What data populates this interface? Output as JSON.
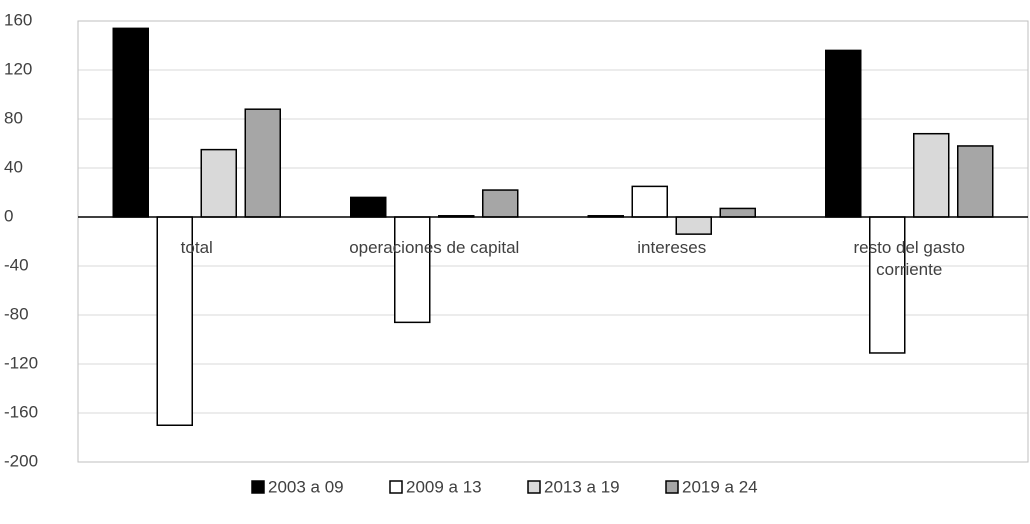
{
  "chart_data": {
    "type": "bar",
    "categories": [
      "total",
      "operaciones de capital",
      "intereses",
      "resto del gasto corriente"
    ],
    "series": [
      {
        "name": "2003 a 09",
        "color": "#000000",
        "values": [
          154,
          16,
          1,
          136
        ]
      },
      {
        "name": "2009 a 13",
        "color": "#ffffff",
        "values": [
          -170,
          -86,
          25,
          -111
        ]
      },
      {
        "name": "2013 a 19",
        "color": "#d9d9d9",
        "values": [
          55,
          1,
          -14,
          68
        ]
      },
      {
        "name": "2019 a 24",
        "color": "#a6a6a6",
        "values": [
          88,
          22,
          7,
          58
        ]
      }
    ],
    "ylim": [
      -200,
      160
    ],
    "yticks": [
      -200,
      -160,
      -120,
      -80,
      -40,
      0,
      40,
      80,
      120,
      160
    ],
    "grid": true,
    "legend": "bottom"
  }
}
